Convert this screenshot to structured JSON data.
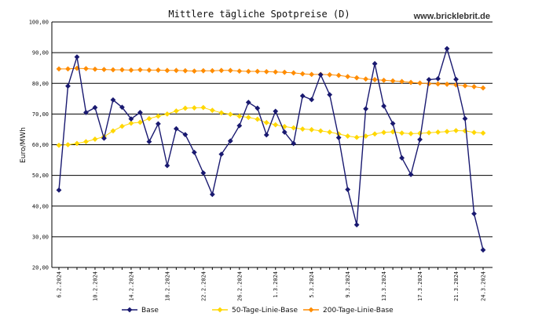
{
  "chart_data": {
    "type": "line",
    "title": "Mittlere tägliche Spotpreise (D)",
    "watermark": "www.bricklebrit.de",
    "ylabel": "Euro/MWh",
    "xlabel": "",
    "ylim": [
      20,
      100
    ],
    "yticks": [
      20,
      30,
      40,
      50,
      60,
      70,
      80,
      90,
      100
    ],
    "ytick_labels": [
      "20,00",
      "30,00",
      "40,00",
      "50,00",
      "60,00",
      "70,00",
      "80,00",
      "90,00",
      "100,00"
    ],
    "grid": "horizontal",
    "legend_position": "bottom",
    "x_tick_labels": [
      {
        "index": 0,
        "label": "6.2.2024"
      },
      {
        "index": 4,
        "label": "10.2.2024"
      },
      {
        "index": 8,
        "label": "14.2.2024"
      },
      {
        "index": 12,
        "label": "18.2.2024"
      },
      {
        "index": 16,
        "label": "22.2.2024"
      },
      {
        "index": 20,
        "label": "26.2.2024"
      },
      {
        "index": 24,
        "label": "1.3.2024"
      },
      {
        "index": 28,
        "label": "5.3.2024"
      },
      {
        "index": 32,
        "label": "9.3.2024"
      },
      {
        "index": 36,
        "label": "13.3.2024"
      },
      {
        "index": 40,
        "label": "17.3.2024"
      },
      {
        "index": 44,
        "label": "21.3.2024"
      },
      {
        "index": 47,
        "label": "24.3.2024"
      }
    ],
    "series": [
      {
        "name": "Base",
        "color": "#191970",
        "marker": "diamond",
        "values": [
          45.2,
          79.1,
          88.6,
          70.5,
          72.1,
          62.1,
          74.6,
          72.2,
          68.4,
          70.5,
          61.0,
          66.8,
          53.2,
          65.2,
          63.3,
          57.5,
          50.8,
          43.8,
          56.9,
          61.2,
          66.2,
          73.8,
          71.9,
          63.2,
          70.9,
          64.1,
          60.4,
          75.9,
          74.7,
          82.8,
          76.3,
          62.3,
          45.4,
          33.9,
          71.7,
          86.4,
          72.6,
          66.9,
          55.7,
          50.3,
          61.7,
          81.2,
          81.5,
          91.3,
          81.3,
          68.5,
          37.5,
          25.7
        ]
      },
      {
        "name": "50-Tage-Linie-Base",
        "color": "#ffd700",
        "marker": "diamond",
        "values": [
          59.8,
          60.0,
          60.4,
          61.0,
          61.8,
          62.6,
          64.5,
          66.0,
          67.0,
          67.3,
          68.5,
          69.3,
          70.0,
          71.0,
          71.9,
          72.0,
          72.1,
          71.2,
          70.4,
          69.9,
          69.3,
          68.9,
          68.3,
          67.2,
          66.5,
          65.9,
          65.5,
          65.1,
          64.9,
          64.5,
          64.1,
          63.5,
          62.8,
          62.4,
          62.8,
          63.5,
          64.0,
          64.2,
          63.8,
          63.6,
          63.7,
          63.9,
          64.1,
          64.3,
          64.6,
          64.5,
          64.0,
          63.8
        ]
      },
      {
        "name": "200-Tage-Linie-Base",
        "color": "#ff8c00",
        "marker": "diamond",
        "values": [
          84.7,
          84.7,
          84.9,
          84.8,
          84.6,
          84.5,
          84.4,
          84.4,
          84.3,
          84.4,
          84.3,
          84.3,
          84.2,
          84.2,
          84.1,
          84.0,
          84.1,
          84.1,
          84.2,
          84.2,
          84.0,
          83.9,
          83.9,
          83.8,
          83.7,
          83.6,
          83.4,
          83.1,
          82.9,
          82.9,
          82.8,
          82.6,
          82.2,
          81.8,
          81.4,
          81.2,
          81.0,
          80.8,
          80.6,
          80.3,
          80.1,
          79.9,
          79.8,
          79.7,
          79.5,
          79.2,
          78.9,
          78.5
        ]
      }
    ]
  }
}
